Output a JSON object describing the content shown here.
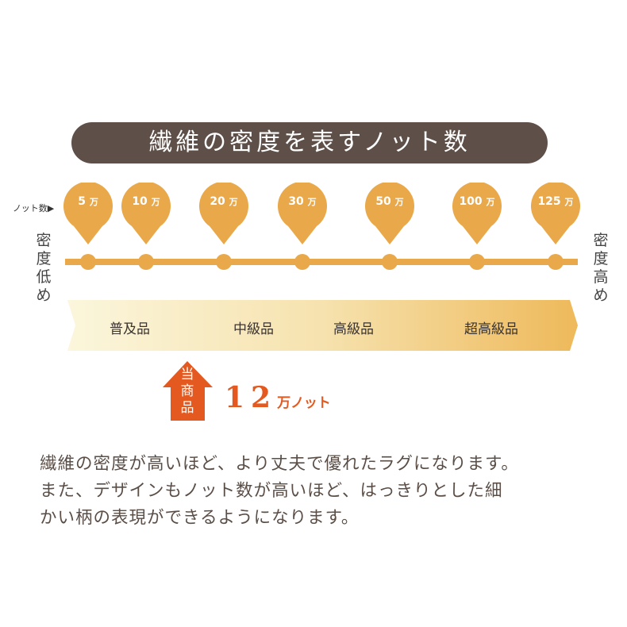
{
  "title": "繊維の密度を表すノット数",
  "knot_label": "ノット数▶",
  "low_label": "密度低め",
  "high_label": "密度高め",
  "knots": [
    "5",
    "10",
    "20",
    "30",
    "50",
    "100",
    "125"
  ],
  "unit": "万",
  "grades": [
    "普及品",
    "中級品",
    "高級品",
    "超高級品"
  ],
  "current": {
    "label": "当商品",
    "value": "12",
    "unit": "万ノット"
  },
  "description": [
    "繊維の密度が高いほど、より丈夫で優れたラグになります。",
    "また、デザインもノット数が高いほど、はっきりとした細",
    "かい柄の表現ができるようになります。"
  ],
  "colors": {
    "banner": "#5e5048",
    "pin": "#e9a94a",
    "arrow": "#e3591f",
    "band_start": "#fbf6dc",
    "band_end": "#eeb95a"
  }
}
